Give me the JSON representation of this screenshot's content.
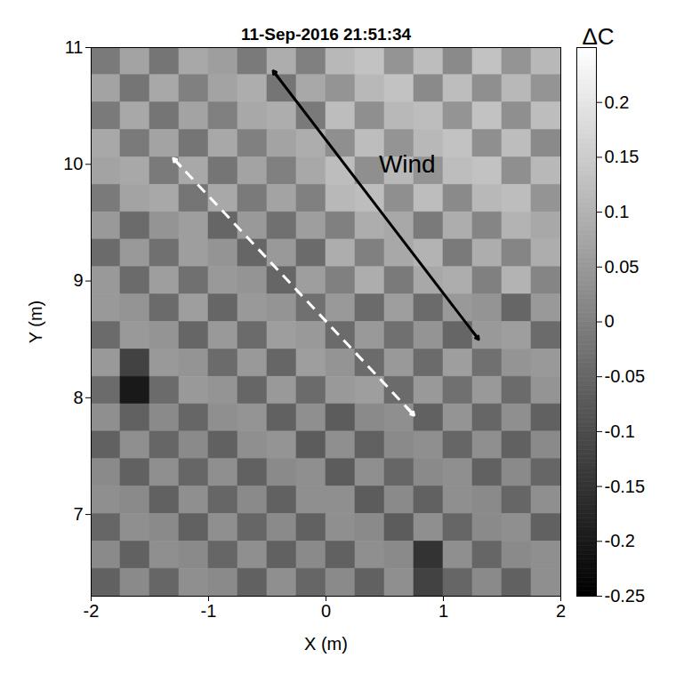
{
  "chart_data": {
    "type": "heatmap",
    "title": "11-Sep-2016 21:51:34",
    "x_label": "X (m)",
    "y_label": "Y (m)",
    "xlim": [
      -2,
      2
    ],
    "ylim": [
      6.3,
      11
    ],
    "xticks": [
      -2,
      -1,
      0,
      1,
      2
    ],
    "yticks": [
      7,
      8,
      9,
      10,
      11
    ],
    "cells": [
      [
        -0.01,
        0.07,
        -0.02,
        0.08,
        0.06,
        -0.01,
        0.09,
        0.0,
        0.11,
        0.13,
        0.04,
        0.12,
        0.02,
        0.13,
        0.04,
        0.11
      ],
      [
        0.07,
        -0.02,
        0.08,
        0.0,
        0.07,
        0.09,
        -0.02,
        0.08,
        0.04,
        0.11,
        0.13,
        0.02,
        0.12,
        0.03,
        0.11,
        0.04
      ],
      [
        -0.01,
        0.08,
        -0.02,
        0.07,
        0.0,
        0.08,
        0.09,
        -0.01,
        0.12,
        0.03,
        0.11,
        0.12,
        0.04,
        0.13,
        0.03,
        0.12
      ],
      [
        0.08,
        -0.01,
        0.07,
        -0.02,
        0.08,
        0.0,
        0.07,
        0.09,
        0.03,
        0.12,
        0.04,
        0.11,
        0.13,
        0.03,
        0.12,
        0.02
      ],
      [
        0.07,
        0.08,
        -0.01,
        0.08,
        -0.02,
        0.07,
        0.0,
        0.08,
        0.12,
        0.03,
        0.11,
        0.04,
        0.12,
        0.13,
        0.03,
        0.11
      ],
      [
        -0.01,
        0.07,
        0.08,
        -0.02,
        0.08,
        -0.01,
        0.07,
        0.0,
        0.11,
        0.12,
        0.03,
        0.12,
        0.02,
        0.11,
        0.12,
        0.04
      ],
      [
        0.05,
        -0.04,
        0.04,
        0.06,
        -0.05,
        0.05,
        -0.03,
        0.06,
        0.0,
        0.09,
        0.08,
        -0.01,
        0.09,
        0.01,
        0.1,
        0.08
      ],
      [
        -0.04,
        0.05,
        -0.03,
        0.06,
        0.04,
        -0.05,
        0.05,
        -0.04,
        0.09,
        0.0,
        0.08,
        0.1,
        -0.01,
        0.09,
        0.01,
        0.09
      ],
      [
        0.05,
        -0.04,
        0.06,
        -0.03,
        0.05,
        0.04,
        -0.05,
        0.06,
        0.0,
        0.09,
        -0.01,
        0.08,
        0.09,
        0.0,
        0.1,
        0.01
      ],
      [
        0.05,
        0.04,
        -0.04,
        0.06,
        -0.05,
        0.05,
        0.04,
        -0.03,
        0.05,
        -0.04,
        0.06,
        -0.04,
        0.05,
        0.04,
        -0.05,
        0.05
      ],
      [
        -0.04,
        0.05,
        0.04,
        -0.05,
        0.05,
        -0.04,
        0.06,
        0.05,
        -0.04,
        0.05,
        -0.03,
        0.04,
        -0.05,
        0.05,
        0.06,
        -0.04
      ],
      [
        0.05,
        -0.12,
        0.05,
        0.04,
        -0.04,
        0.05,
        -0.05,
        0.06,
        0.04,
        -0.04,
        0.05,
        -0.04,
        0.06,
        -0.03,
        0.04,
        0.05
      ],
      [
        -0.04,
        -0.2,
        -0.04,
        0.05,
        0.04,
        -0.05,
        0.05,
        -0.04,
        0.05,
        0.06,
        -0.04,
        0.05,
        -0.03,
        0.05,
        -0.04,
        0.04
      ],
      [
        0.03,
        -0.06,
        0.02,
        -0.05,
        0.03,
        0.04,
        -0.06,
        0.03,
        -0.07,
        0.02,
        0.03,
        -0.06,
        0.04,
        -0.05,
        0.03,
        -0.06
      ],
      [
        -0.06,
        0.03,
        -0.05,
        0.02,
        -0.06,
        0.03,
        0.04,
        -0.07,
        0.03,
        -0.06,
        0.02,
        0.03,
        -0.05,
        0.03,
        -0.06,
        0.02
      ],
      [
        0.02,
        -0.06,
        0.03,
        -0.05,
        0.03,
        -0.06,
        0.02,
        0.03,
        -0.07,
        0.03,
        -0.05,
        0.02,
        0.03,
        -0.06,
        0.02,
        -0.05
      ],
      [
        0.03,
        0.02,
        -0.06,
        0.03,
        -0.05,
        0.02,
        -0.06,
        0.03,
        0.03,
        -0.07,
        0.02,
        -0.06,
        0.03,
        0.02,
        -0.05,
        0.03
      ],
      [
        -0.05,
        0.03,
        0.02,
        -0.06,
        0.03,
        -0.05,
        0.02,
        -0.06,
        0.03,
        0.02,
        -0.07,
        0.03,
        -0.05,
        0.02,
        0.03,
        -0.06
      ],
      [
        0.02,
        -0.06,
        0.03,
        0.02,
        -0.05,
        0.03,
        -0.06,
        0.02,
        -0.06,
        0.03,
        0.02,
        -0.15,
        0.03,
        -0.05,
        0.02,
        0.03
      ],
      [
        -0.06,
        0.02,
        -0.05,
        0.03,
        0.02,
        -0.06,
        0.03,
        -0.05,
        0.02,
        -0.06,
        0.03,
        -0.12,
        -0.05,
        0.02,
        -0.06,
        0.03
      ]
    ],
    "colorbar": {
      "label": "ΔC",
      "range": [
        -0.25,
        0.25
      ],
      "ticks": [
        0.2,
        0.15,
        0.1,
        0.05,
        0,
        -0.05,
        -0.1,
        -0.15,
        -0.2,
        -0.25
      ]
    },
    "annotations": [
      {
        "text": "Wind",
        "x": 0.45,
        "y": 10.0
      }
    ],
    "arrows": [
      {
        "x": [
          -0.45,
          1.3
        ],
        "y": [
          10.8,
          8.5
        ],
        "color": "#000000",
        "line_style": "solid"
      },
      {
        "x": [
          -1.3,
          0.75
        ],
        "y": [
          10.05,
          7.85
        ],
        "color": "#ffffff",
        "line_style": "dashed"
      }
    ]
  }
}
